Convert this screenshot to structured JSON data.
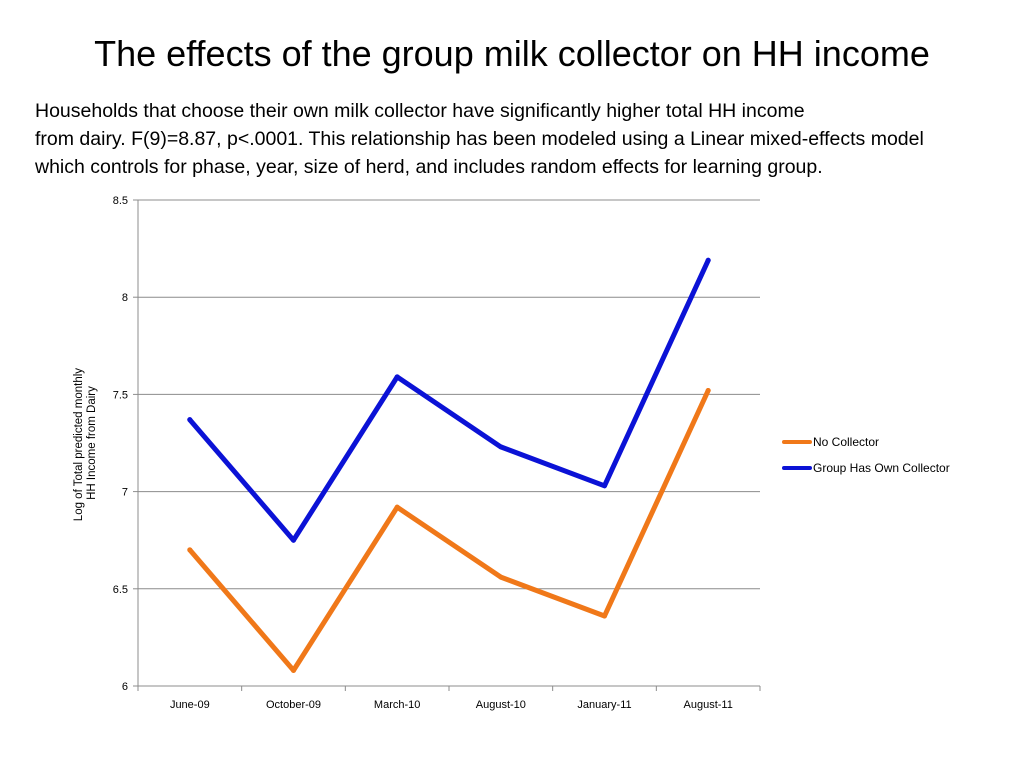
{
  "title": "The effects of the group milk collector on HH income",
  "description": [
    "Households that choose their own milk collector have significantly higher total HH income",
    "from dairy. F(9)=8.87, p<.0001. This relationship has been modeled using a Linear mixed-effects model",
    "which controls for phase, year, size of herd, and includes random effects for learning group."
  ],
  "chart_data": {
    "type": "line",
    "title": "",
    "xlabel": "",
    "ylabel": "Log of Total predicted monthly HH Income from Dairy",
    "ylabel_lines": [
      "Log of Total predicted monthly",
      "HH Income from Dairy"
    ],
    "categories": [
      "June-09",
      "October-09",
      "March-10",
      "August-10",
      "January-11",
      "August-11"
    ],
    "ylim": [
      6,
      8.5
    ],
    "yticks": [
      6,
      6.5,
      7,
      7.5,
      8,
      8.5
    ],
    "ytick_labels": [
      "6",
      "6.5",
      "7",
      "7.5",
      "8",
      "8.5"
    ],
    "grid": true,
    "legend_position": "right",
    "series": [
      {
        "name": "No Collector",
        "color": "#f07819",
        "values": [
          6.7,
          6.08,
          6.92,
          6.56,
          6.36,
          7.52
        ]
      },
      {
        "name": "Group Has Own Collector",
        "color": "#0b12d6",
        "values": [
          7.37,
          6.75,
          7.59,
          7.23,
          7.03,
          8.19
        ]
      }
    ]
  }
}
